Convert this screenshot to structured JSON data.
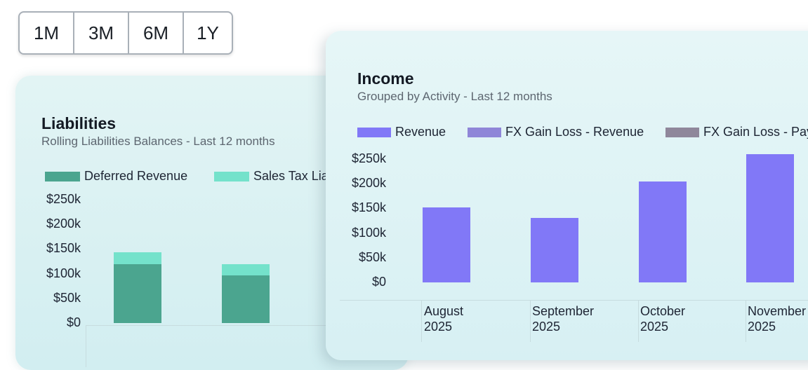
{
  "range_selector": {
    "options": [
      "1M",
      "3M",
      "6M",
      "1Y"
    ]
  },
  "liabilities": {
    "title": "Liabilities",
    "subtitle": "Rolling Liabilities Balances - Last 12 months",
    "legend": [
      "Deferred Revenue",
      "Sales Tax Lia"
    ]
  },
  "income": {
    "title": "Income",
    "subtitle": "Grouped by Activity - Last 12 months",
    "legend": [
      "Revenue",
      "FX Gain Loss - Revenue",
      "FX Gain Loss - Pay"
    ]
  },
  "chart_data": [
    {
      "type": "bar",
      "title": "Liabilities",
      "subtitle": "Rolling Liabilities Balances - Last 12 months",
      "stacked": true,
      "categories": [
        "",
        ""
      ],
      "series": [
        {
          "name": "Deferred Revenue",
          "values": [
            119000,
            97000
          ],
          "color": "#4ba58f"
        },
        {
          "name": "Sales Tax Lia",
          "values": [
            24000,
            23000
          ],
          "color": "#74e2cb"
        }
      ],
      "yticks": [
        "$250k",
        "$200k",
        "$150k",
        "$100k",
        "$50k",
        "$0"
      ],
      "ylim": [
        0,
        250000
      ],
      "grid": true,
      "legend_position": "top-left"
    },
    {
      "type": "bar",
      "title": "Income",
      "subtitle": "Grouped by Activity - Last 12 months",
      "categories": [
        [
          "August",
          "2025"
        ],
        [
          "September",
          "2025"
        ],
        [
          "October",
          "2025"
        ],
        [
          "November",
          "2025"
        ]
      ],
      "series": [
        {
          "name": "Revenue",
          "values": [
            152000,
            130000,
            205000,
            260000
          ],
          "color": "#8178f7"
        },
        {
          "name": "FX Gain Loss - Revenue",
          "values": [
            0,
            0,
            0,
            0
          ],
          "color": "#8f86d8"
        },
        {
          "name": "FX Gain Loss - Pay",
          "values": [
            0,
            0,
            0,
            0
          ],
          "color": "#8f879b"
        }
      ],
      "yticks": [
        "$250k",
        "$200k",
        "$150k",
        "$100k",
        "$50k",
        "$0"
      ],
      "ylim": [
        0,
        250000
      ],
      "grid": true,
      "legend_position": "top-left"
    }
  ]
}
